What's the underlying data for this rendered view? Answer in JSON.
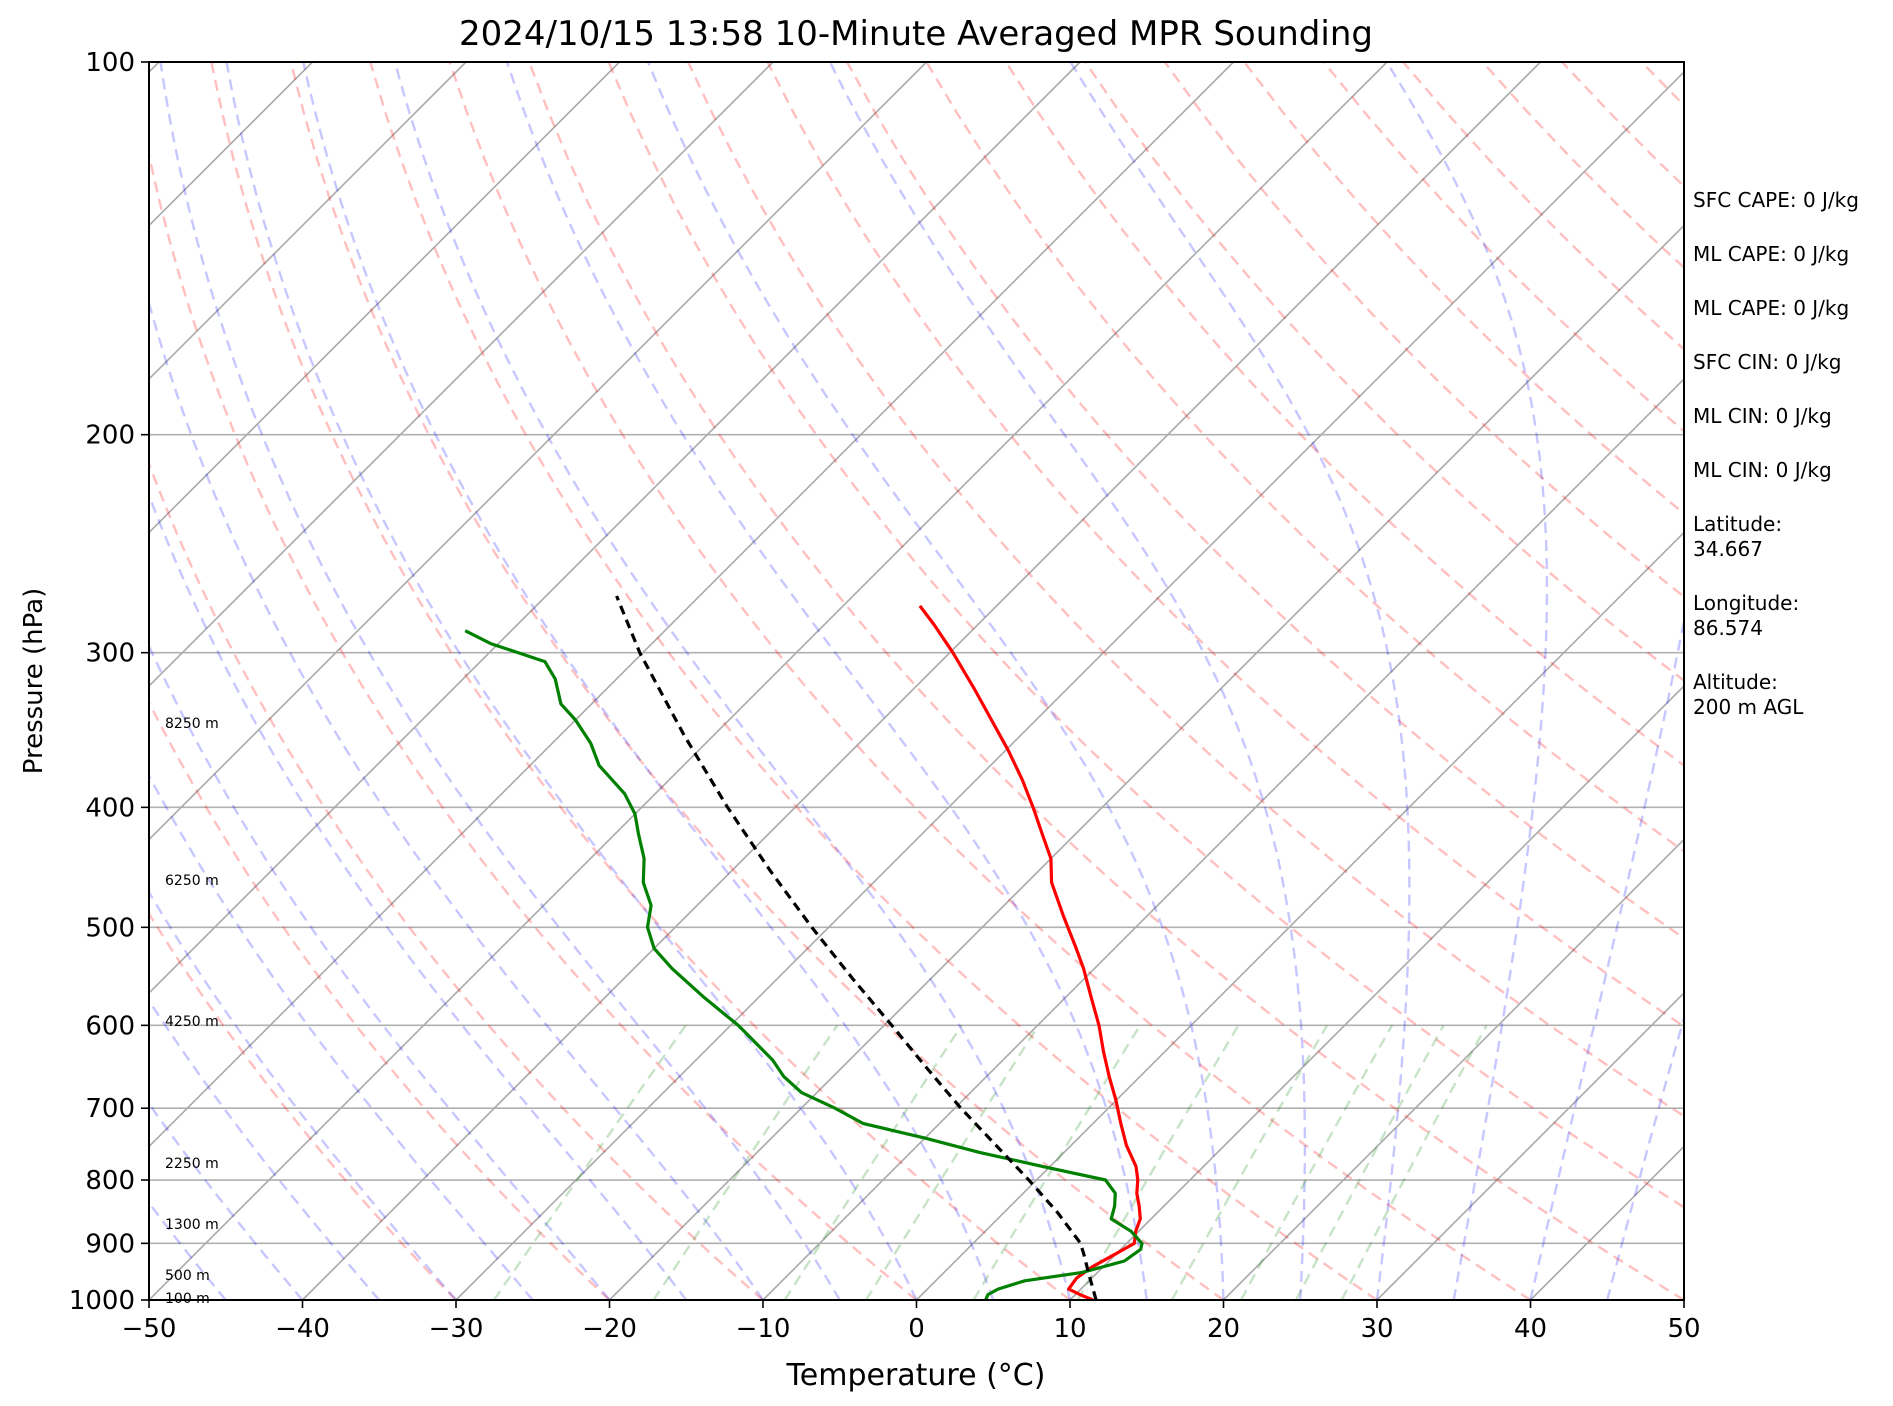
{
  "chart_data": {
    "type": "line",
    "title": "2024/10/15 13:58 10-Minute Averaged MPR Sounding",
    "xlabel": "Temperature (°C)",
    "ylabel": "Pressure (hPa)",
    "xlim": [
      -50,
      50
    ],
    "ylim": [
      1000,
      100
    ],
    "y_scale": "log",
    "grid": true,
    "x_ticks": [
      "−50",
      "−40",
      "−30",
      "−20",
      "−10",
      "0",
      "10",
      "20",
      "30",
      "40",
      "50"
    ],
    "y_ticks": [
      "100",
      "200",
      "300",
      "400",
      "500",
      "600",
      "700",
      "800",
      "900",
      "1000"
    ],
    "height_labels": [
      {
        "text": "100 m",
        "pressure": 996
      },
      {
        "text": "500 m",
        "pressure": 955
      },
      {
        "text": "1300 m",
        "pressure": 868
      },
      {
        "text": "2250 m",
        "pressure": 775
      },
      {
        "text": "4250 m",
        "pressure": 595
      },
      {
        "text": "6250 m",
        "pressure": 458
      },
      {
        "text": "8250 m",
        "pressure": 342
      }
    ],
    "series": [
      {
        "style": "temperature",
        "color": "#ff0000",
        "points": [
          [
            1000,
            11.5
          ],
          [
            990,
            10.3
          ],
          [
            980,
            9.2
          ],
          [
            960,
            9.0
          ],
          [
            940,
            9.3
          ],
          [
            920,
            9.9
          ],
          [
            900,
            10.5
          ],
          [
            880,
            9.8
          ],
          [
            860,
            9.3
          ],
          [
            840,
            8.4
          ],
          [
            820,
            7.4
          ],
          [
            800,
            6.6
          ],
          [
            780,
            5.6
          ],
          [
            750,
            3.6
          ],
          [
            720,
            1.8
          ],
          [
            690,
            0.0
          ],
          [
            660,
            -2.0
          ],
          [
            630,
            -4.0
          ],
          [
            600,
            -6.0
          ],
          [
            570,
            -8.3
          ],
          [
            540,
            -10.7
          ],
          [
            520,
            -12.5
          ],
          [
            490,
            -15.4
          ],
          [
            460,
            -18.4
          ],
          [
            440,
            -20.0
          ],
          [
            420,
            -22.2
          ],
          [
            400,
            -24.5
          ],
          [
            380,
            -27.0
          ],
          [
            360,
            -29.8
          ],
          [
            340,
            -32.9
          ],
          [
            320,
            -36.2
          ],
          [
            300,
            -39.8
          ],
          [
            285,
            -42.8
          ],
          [
            275,
            -45.0
          ]
        ]
      },
      {
        "style": "dewpoint",
        "color": "#008000",
        "points": [
          [
            1000,
            4.5
          ],
          [
            990,
            4.3
          ],
          [
            980,
            4.6
          ],
          [
            965,
            5.8
          ],
          [
            950,
            9.0
          ],
          [
            930,
            11.0
          ],
          [
            910,
            11.3
          ],
          [
            900,
            11.0
          ],
          [
            880,
            9.5
          ],
          [
            860,
            7.4
          ],
          [
            840,
            6.8
          ],
          [
            820,
            6.0
          ],
          [
            800,
            4.5
          ],
          [
            780,
            -0.5
          ],
          [
            760,
            -5.5
          ],
          [
            740,
            -10.0
          ],
          [
            720,
            -15.0
          ],
          [
            700,
            -17.8
          ],
          [
            680,
            -21.0
          ],
          [
            660,
            -23.2
          ],
          [
            640,
            -25.0
          ],
          [
            600,
            -29.5
          ],
          [
            570,
            -33.5
          ],
          [
            540,
            -37.5
          ],
          [
            520,
            -40.0
          ],
          [
            500,
            -41.8
          ],
          [
            480,
            -43.0
          ],
          [
            460,
            -45.0
          ],
          [
            440,
            -46.5
          ],
          [
            420,
            -48.5
          ],
          [
            405,
            -50.0
          ],
          [
            390,
            -52.0
          ],
          [
            370,
            -55.5
          ],
          [
            355,
            -57.5
          ],
          [
            340,
            -60.0
          ],
          [
            330,
            -62.0
          ],
          [
            315,
            -64.0
          ],
          [
            305,
            -65.8
          ],
          [
            295,
            -70.5
          ],
          [
            288,
            -73.0
          ]
        ]
      },
      {
        "style": "parcel",
        "color": "#000000",
        "points": [
          [
            1000,
            11.7
          ],
          [
            950,
            9.4
          ],
          [
            920,
            8.0
          ],
          [
            900,
            7.0
          ],
          [
            850,
            3.5
          ],
          [
            800,
            -0.5
          ],
          [
            750,
            -4.9
          ],
          [
            700,
            -9.6
          ],
          [
            650,
            -14.4
          ],
          [
            600,
            -19.5
          ],
          [
            550,
            -25.1
          ],
          [
            500,
            -31.1
          ],
          [
            450,
            -37.5
          ],
          [
            400,
            -44.4
          ],
          [
            350,
            -51.9
          ],
          [
            300,
            -60.2
          ],
          [
            270,
            -65.4
          ]
        ]
      }
    ]
  },
  "stats": [
    "SFC CAPE: 0 J/kg",
    "ML CAPE: 0 J/kg",
    "ML CAPE: 0 J/kg",
    "SFC CIN: 0 J/kg",
    "ML CIN: 0 J/kg",
    "ML CIN: 0 J/kg",
    "Latitude:\n34.667",
    "Longitude:\n86.574",
    "Altitude:\n200 m AGL"
  ]
}
